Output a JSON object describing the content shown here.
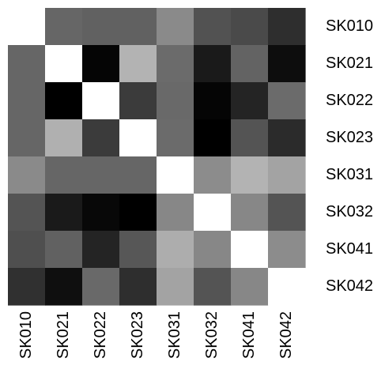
{
  "chart_data": {
    "type": "heatmap",
    "title": "",
    "xlabel": "",
    "ylabel": "",
    "rows": [
      "SK010",
      "SK021",
      "SK022",
      "SK023",
      "SK031",
      "SK032",
      "SK041",
      "SK042"
    ],
    "columns": [
      "SK010",
      "SK021",
      "SK022",
      "SK023",
      "SK031",
      "SK032",
      "SK041",
      "SK042"
    ],
    "values": [
      [
        null,
        0.4,
        0.38,
        0.38,
        0.54,
        0.32,
        0.29,
        0.18
      ],
      [
        0.4,
        null,
        0.02,
        0.7,
        0.42,
        0.1,
        0.39,
        0.05
      ],
      [
        0.4,
        0.0,
        null,
        0.23,
        0.41,
        0.02,
        0.14,
        0.42
      ],
      [
        0.4,
        0.69,
        0.23,
        null,
        0.42,
        0.0,
        0.33,
        0.17
      ],
      [
        0.54,
        0.4,
        0.4,
        0.4,
        null,
        0.55,
        0.7,
        0.64
      ],
      [
        0.33,
        0.1,
        0.03,
        0.0,
        0.53,
        null,
        0.53,
        0.33
      ],
      [
        0.31,
        0.38,
        0.14,
        0.34,
        0.68,
        0.53,
        null,
        0.55
      ],
      [
        0.19,
        0.06,
        0.41,
        0.18,
        0.64,
        0.33,
        0.53,
        null
      ]
    ],
    "diagonal": "white",
    "row_label_position": "right",
    "column_label_position": "bottom",
    "column_label_rotation": "vertical",
    "colors": {
      "low": "#000000",
      "high": "#ffffff",
      "missing": "#ffffff"
    },
    "legend": "none",
    "grid": false
  }
}
